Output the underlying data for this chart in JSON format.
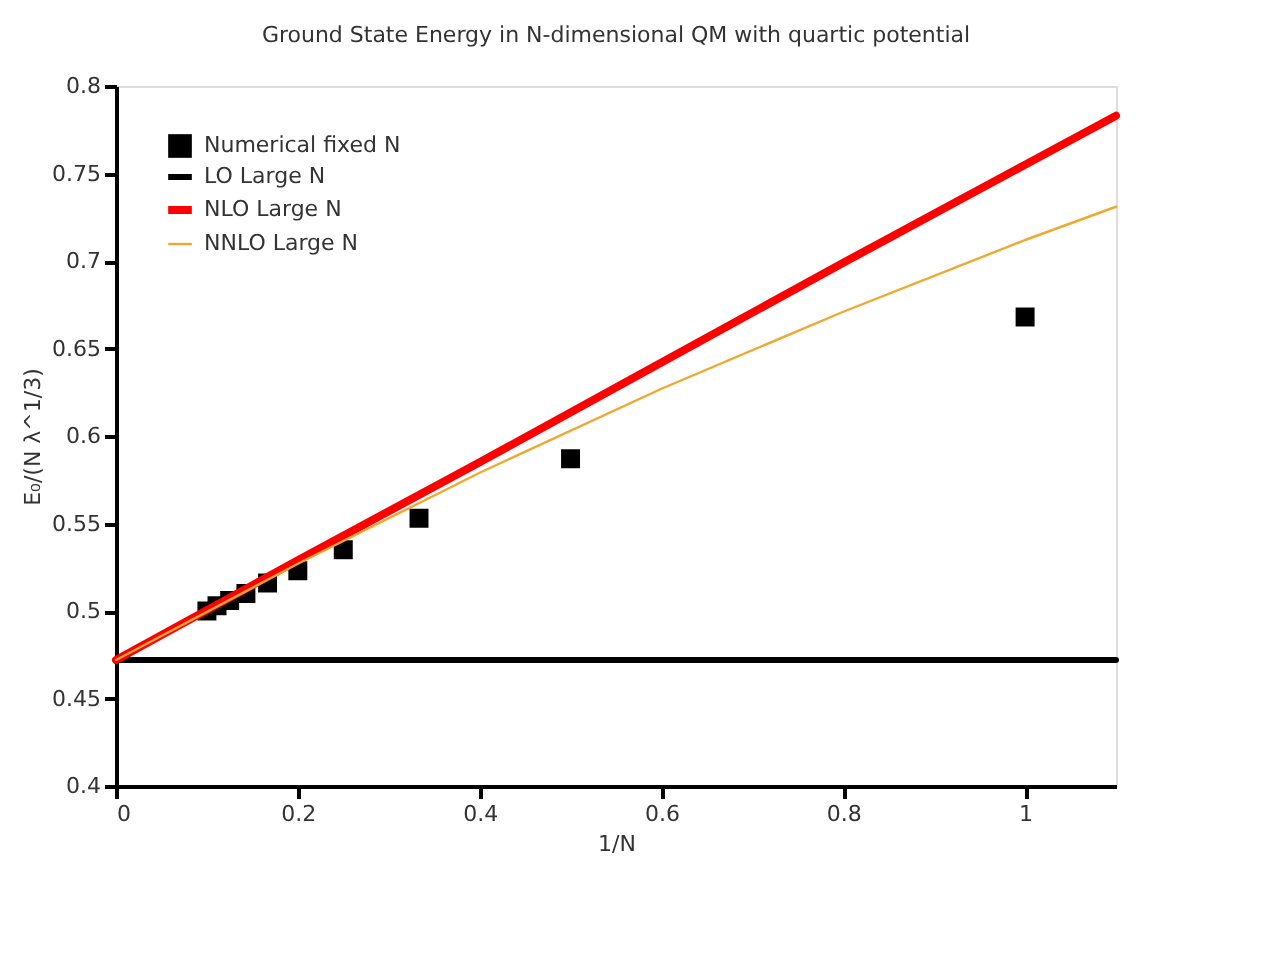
{
  "chart_data": {
    "type": "line",
    "title": "Ground State Energy in N-dimensional QM with quartic potential",
    "xlabel": "1/N",
    "ylabel": "E₀/(N λ^1/3)",
    "xlim": [
      0,
      1.1
    ],
    "xticks": [
      0,
      0.2,
      0.4,
      0.6,
      0.8,
      1
    ],
    "ylim": [
      0.4,
      0.8
    ],
    "yticks": [
      0.4,
      0.45,
      0.5,
      0.55,
      0.6,
      0.65,
      0.7,
      0.75,
      0.8
    ],
    "grid": false,
    "legend": "top left",
    "series": [
      {
        "name": "Numerical fixed N",
        "type": "scatter",
        "marker": "square",
        "color": "#000000",
        "x": [
          1,
          0.5,
          0.3333,
          0.25,
          0.2,
          0.1667,
          0.1429,
          0.125,
          0.1111,
          0.1
        ],
        "values": [
          0.668,
          0.587,
          0.553,
          0.535,
          0.523,
          0.516,
          0.51,
          0.506,
          0.503,
          0.5
        ]
      },
      {
        "name": "LO Large N",
        "type": "line",
        "color": "#000000",
        "x": [
          0,
          1.1
        ],
        "values": [
          0.472,
          0.472
        ]
      },
      {
        "name": "NLO Large N",
        "type": "line",
        "color": "#ff0000",
        "x": [
          0,
          0.2,
          0.4,
          0.6,
          0.8,
          1.0,
          1.1
        ],
        "values": [
          0.472,
          0.529,
          0.585,
          0.642,
          0.699,
          0.755,
          0.783
        ]
      },
      {
        "name": "NNLO Large N",
        "type": "line",
        "color": "#f0a830",
        "x": [
          0,
          0.2,
          0.4,
          0.6,
          0.8,
          1.0,
          1.1
        ],
        "values": [
          0.472,
          0.527,
          0.579,
          0.627,
          0.671,
          0.712,
          0.731
        ]
      }
    ]
  }
}
